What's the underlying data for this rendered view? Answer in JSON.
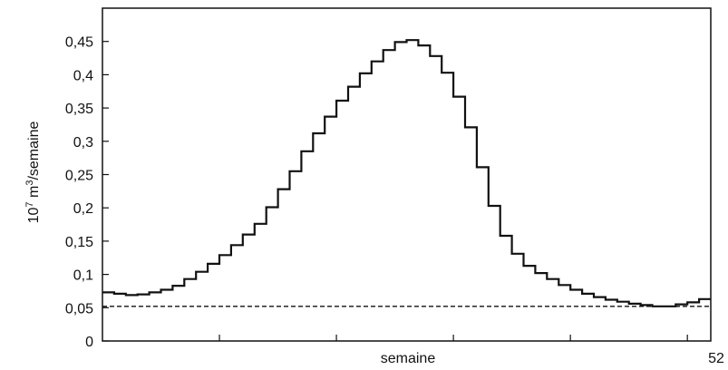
{
  "chart_data": {
    "type": "line",
    "xlabel": "semaine",
    "ylabel": "10⁷ m³/semaine",
    "ylabel_parts": {
      "base": "10",
      "exp": "7",
      "mid": " m",
      "exp2": "3",
      "tail": "/semaine"
    },
    "xlim": [
      0,
      52
    ],
    "ylim": [
      0,
      0.5
    ],
    "x_end_label": "52",
    "yticks": [
      {
        "value": 0,
        "label": "0"
      },
      {
        "value": 0.05,
        "label": "0,05"
      },
      {
        "value": 0.1,
        "label": "0,1"
      },
      {
        "value": 0.15,
        "label": "0,15"
      },
      {
        "value": 0.2,
        "label": "0,2"
      },
      {
        "value": 0.25,
        "label": "0,25"
      },
      {
        "value": 0.3,
        "label": "0,3"
      },
      {
        "value": 0.35,
        "label": "0,35"
      },
      {
        "value": 0.4,
        "label": "0,4"
      },
      {
        "value": 0.45,
        "label": "0,45"
      }
    ],
    "xticks_unlabeled": [
      10,
      20,
      30,
      40,
      50
    ],
    "grid": false,
    "series": [
      {
        "style": "step",
        "color": "#111111",
        "x": [
          0,
          1,
          2,
          3,
          4,
          5,
          6,
          7,
          8,
          9,
          10,
          11,
          12,
          13,
          14,
          15,
          16,
          17,
          18,
          19,
          20,
          21,
          22,
          23,
          24,
          25,
          26,
          27,
          28,
          29,
          30,
          31,
          32,
          33,
          34,
          35,
          36,
          37,
          38,
          39,
          40,
          41,
          42,
          43,
          44,
          45,
          46,
          47,
          48,
          49,
          50,
          51,
          52
        ],
        "y": [
          0.073,
          0.071,
          0.069,
          0.07,
          0.073,
          0.077,
          0.083,
          0.093,
          0.104,
          0.116,
          0.129,
          0.144,
          0.16,
          0.176,
          0.201,
          0.228,
          0.255,
          0.285,
          0.312,
          0.337,
          0.361,
          0.382,
          0.402,
          0.42,
          0.437,
          0.449,
          0.452,
          0.444,
          0.428,
          0.403,
          0.367,
          0.321,
          0.261,
          0.203,
          0.158,
          0.131,
          0.113,
          0.102,
          0.093,
          0.084,
          0.077,
          0.071,
          0.066,
          0.062,
          0.059,
          0.056,
          0.054,
          0.052,
          0.052,
          0.055,
          0.058,
          0.063,
          0.068
        ]
      },
      {
        "style": "dashed",
        "color": "#111111",
        "x": [
          0,
          52
        ],
        "y": [
          0.052,
          0.052
        ]
      }
    ]
  }
}
